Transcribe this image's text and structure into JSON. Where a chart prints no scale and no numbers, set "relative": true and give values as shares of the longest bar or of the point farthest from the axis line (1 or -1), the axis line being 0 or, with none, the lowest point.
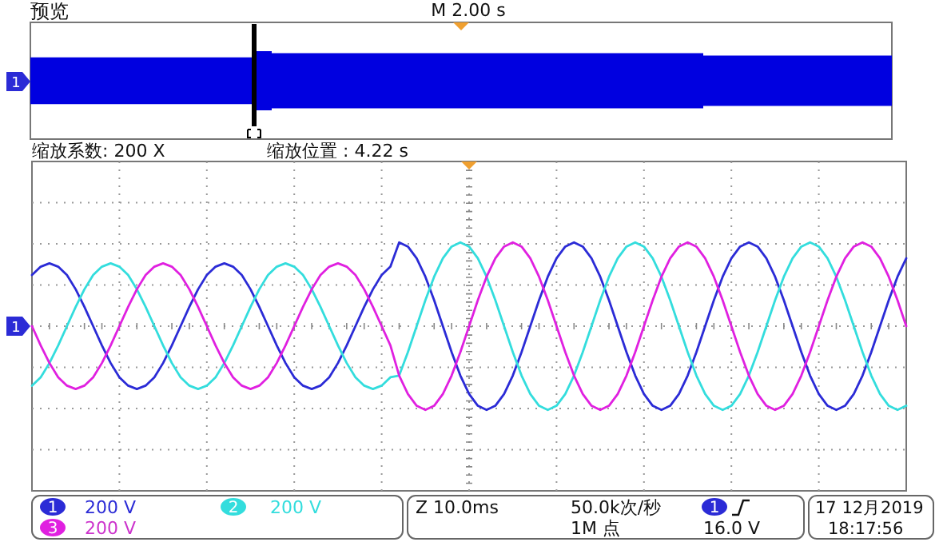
{
  "chart_data": {
    "type": "line",
    "title": "预览",
    "relative": true,
    "grid": true,
    "legend": "bottom",
    "categories": [
      null,
      null,
      null,
      null,
      null,
      null,
      null,
      null,
      null,
      null,
      null,
      null,
      null,
      null,
      null,
      null,
      null,
      null,
      null,
      null,
      null,
      null,
      null,
      null,
      null,
      null,
      null,
      null,
      null,
      null,
      null,
      null,
      null,
      null,
      null,
      null,
      null,
      null,
      null,
      null,
      null,
      null,
      null,
      null,
      null,
      null,
      null,
      null,
      null,
      null,
      null,
      null,
      null,
      null,
      null,
      null,
      null,
      null,
      null,
      null,
      null,
      null,
      null,
      null,
      null,
      null,
      null,
      null,
      null,
      null,
      null,
      null,
      null,
      null,
      null,
      null,
      null,
      null,
      null,
      null,
      null,
      null,
      null,
      null,
      null,
      null,
      null,
      null,
      null,
      null,
      null,
      null,
      null,
      null,
      null,
      null,
      null,
      null,
      null,
      null,
      null
    ],
    "series": [
      {
        "name": "1",
        "color": "#2b2bd6",
        "values": [
          0.61,
          0.71,
          0.75,
          0.71,
          0.61,
          0.44,
          0.23,
          0,
          -0.23,
          -0.44,
          -0.61,
          -0.71,
          -0.75,
          -0.71,
          -0.61,
          -0.44,
          -0.23,
          0,
          0.23,
          0.44,
          0.61,
          0.71,
          0.75,
          0.71,
          0.61,
          0.44,
          0.23,
          0,
          -0.23,
          -0.44,
          -0.61,
          -0.71,
          -0.75,
          -0.71,
          -0.61,
          -0.44,
          -0.23,
          0,
          0.23,
          0.44,
          0.61,
          0.71,
          1,
          0.95,
          0.81,
          0.59,
          0.31,
          0,
          -0.31,
          -0.59,
          -0.81,
          -0.95,
          -1,
          -0.95,
          -0.81,
          -0.59,
          -0.31,
          0,
          0.31,
          0.59,
          0.81,
          0.95,
          1,
          0.95,
          0.81,
          0.59,
          0.31,
          0,
          -0.31,
          -0.59,
          -0.81,
          -0.95,
          -1,
          -0.95,
          -0.81,
          -0.59,
          -0.31,
          0,
          0.31,
          0.59,
          0.81,
          0.95,
          1,
          0.95,
          0.81,
          0.59,
          0.31,
          0,
          -0.31,
          -0.59,
          -0.81,
          -0.95,
          -1,
          -0.95,
          -0.81,
          -0.59,
          -0.31,
          0,
          0.31,
          0.59,
          0.81
        ]
      },
      {
        "name": "2",
        "color": "#33dddd",
        "values": [
          -0.71,
          -0.61,
          -0.44,
          -0.23,
          0,
          0.23,
          0.44,
          0.61,
          0.71,
          0.75,
          0.71,
          0.61,
          0.44,
          0.23,
          0,
          -0.23,
          -0.44,
          -0.61,
          -0.71,
          -0.75,
          -0.71,
          -0.61,
          -0.44,
          -0.23,
          0,
          0.23,
          0.44,
          0.61,
          0.71,
          0.75,
          0.71,
          0.61,
          0.44,
          0.23,
          0,
          -0.23,
          -0.44,
          -0.61,
          -0.71,
          -0.75,
          -0.71,
          -0.61,
          -0.59,
          -0.31,
          0,
          0.31,
          0.59,
          0.81,
          0.95,
          1,
          0.95,
          0.81,
          0.59,
          0.31,
          0,
          -0.31,
          -0.59,
          -0.81,
          -0.95,
          -1,
          -0.95,
          -0.81,
          -0.59,
          -0.31,
          0,
          0.31,
          0.59,
          0.81,
          0.95,
          1,
          0.95,
          0.81,
          0.59,
          0.31,
          0,
          -0.31,
          -0.59,
          -0.81,
          -0.95,
          -1,
          -0.95,
          -0.81,
          -0.59,
          -0.31,
          0,
          0.31,
          0.59,
          0.81,
          0.95,
          1,
          0.95,
          0.81,
          0.59,
          0.31,
          0,
          -0.31,
          -0.59,
          -0.81,
          -0.95,
          -1,
          -0.95
        ]
      },
      {
        "name": "3",
        "color": "#e020e0",
        "values": [
          0,
          -0.23,
          -0.44,
          -0.61,
          -0.71,
          -0.75,
          -0.71,
          -0.61,
          -0.44,
          -0.23,
          0,
          0.23,
          0.44,
          0.61,
          0.71,
          0.75,
          0.71,
          0.61,
          0.44,
          0.23,
          0,
          -0.23,
          -0.44,
          -0.61,
          -0.71,
          -0.75,
          -0.71,
          -0.61,
          -0.44,
          -0.23,
          0,
          0.23,
          0.44,
          0.61,
          0.71,
          0.75,
          0.71,
          0.61,
          0.44,
          0.23,
          0,
          -0.23,
          -0.59,
          -0.81,
          -0.95,
          -1,
          -0.95,
          -0.81,
          -0.59,
          -0.31,
          0,
          0.31,
          0.59,
          0.81,
          0.95,
          1,
          0.95,
          0.81,
          0.59,
          0.31,
          0,
          -0.31,
          -0.59,
          -0.81,
          -0.95,
          -1,
          -0.95,
          -0.81,
          -0.59,
          -0.31,
          0,
          0.31,
          0.59,
          0.81,
          0.95,
          1,
          0.95,
          0.81,
          0.59,
          0.31,
          0,
          -0.31,
          -0.59,
          -0.81,
          -0.95,
          -1,
          -0.95,
          -0.81,
          -0.59,
          -0.31,
          0,
          0.31,
          0.59,
          0.81,
          0.95,
          1,
          0.95,
          0.81,
          0.59,
          0.31,
          0
        ]
      }
    ],
    "annotations": [
      "M 2.00 s",
      "1",
      "缩放系数: 200 X",
      "缩放位置 : 4.22 s",
      "200 V",
      "200 V",
      "200 V",
      "Z 10.0ms",
      "50.0k次/秒",
      "1M 点",
      "1",
      "16.0 V",
      "17 12月2019",
      "18:17:56",
      "1"
    ]
  }
}
